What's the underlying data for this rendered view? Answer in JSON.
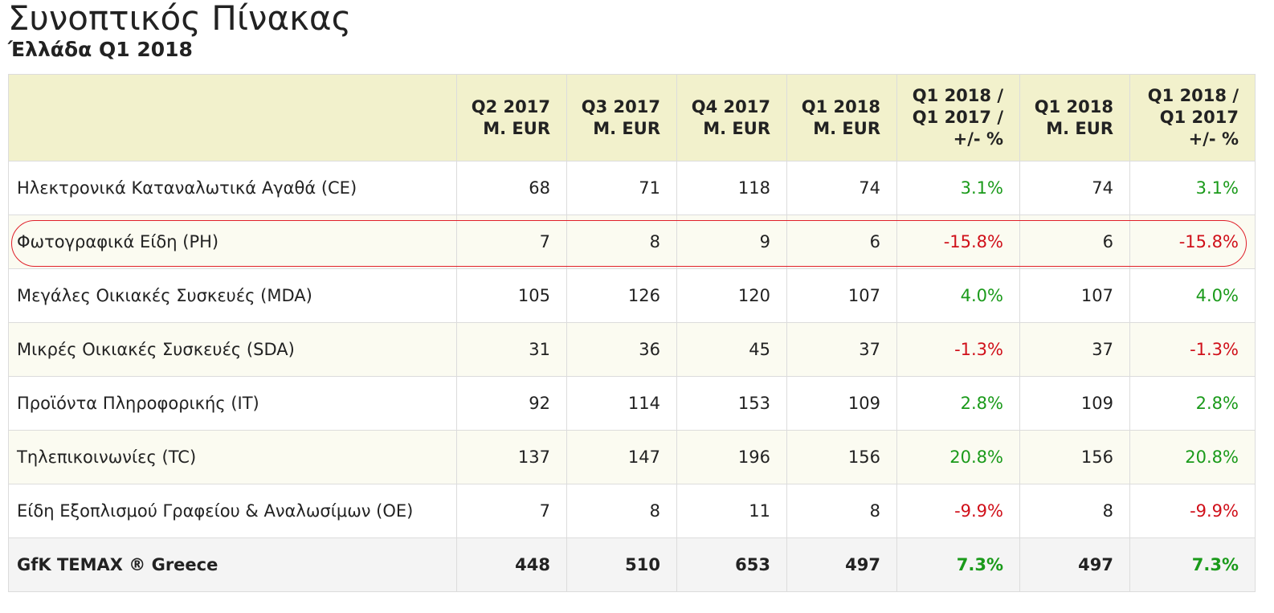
{
  "title": "Συνοπτικός Πίνακας",
  "subtitle": "Έλλάδα Q1 2018",
  "table": {
    "headers": [
      "",
      "Q2 2017\nM. EUR",
      "Q3 2017\nM. EUR",
      "Q4 2017\nM. EUR",
      "Q1 2018\nM. EUR",
      "Q1 2018 /\nQ1 2017 /\n+/- %",
      "Q1 2018\nM. EUR",
      "Q1 2018 /\nQ1 2017\n+/- %"
    ],
    "rows": [
      {
        "label": "Ηλεκτρονικά Καταναλωτικά Αγαθά (CE)",
        "q2_2017": "68",
        "q3_2017": "71",
        "q4_2017": "118",
        "q1_2018": "74",
        "change": "3.1%",
        "q1_2018_b": "74",
        "change_b": "3.1%"
      },
      {
        "label": "Φωτογραφικά Είδη (PH)",
        "q2_2017": "7",
        "q3_2017": "8",
        "q4_2017": "9",
        "q1_2018": "6",
        "change": "-15.8%",
        "q1_2018_b": "6",
        "change_b": "-15.8%"
      },
      {
        "label": "Μεγάλες Οικιακές Συσκευές (MDA)",
        "q2_2017": "105",
        "q3_2017": "126",
        "q4_2017": "120",
        "q1_2018": "107",
        "change": "4.0%",
        "q1_2018_b": "107",
        "change_b": "4.0%"
      },
      {
        "label": "Μικρές Οικιακές Συσκευές (SDA)",
        "q2_2017": "31",
        "q3_2017": "36",
        "q4_2017": "45",
        "q1_2018": "37",
        "change": "-1.3%",
        "q1_2018_b": "37",
        "change_b": "-1.3%"
      },
      {
        "label": "Προϊόντα Πληροφορικής (IT)",
        "q2_2017": "92",
        "q3_2017": "114",
        "q4_2017": "153",
        "q1_2018": "109",
        "change": "2.8%",
        "q1_2018_b": "109",
        "change_b": "2.8%"
      },
      {
        "label": "Τηλεπικοινωνίες (TC)",
        "q2_2017": "137",
        "q3_2017": "147",
        "q4_2017": "196",
        "q1_2018": "156",
        "change": "20.8%",
        "q1_2018_b": "156",
        "change_b": "20.8%"
      },
      {
        "label": "Είδη Εξοπλισμού Γραφείου & Αναλωσίμων (OE)",
        "q2_2017": "7",
        "q3_2017": "8",
        "q4_2017": "11",
        "q1_2018": "8",
        "change": "-9.9%",
        "q1_2018_b": "8",
        "change_b": "-9.9%"
      }
    ],
    "total": {
      "label": "GfK TEMAX ® Greece",
      "q2_2017": "448",
      "q3_2017": "510",
      "q4_2017": "653",
      "q1_2018": "497",
      "change": "7.3%",
      "q1_2018_b": "497",
      "change_b": "7.3%"
    }
  },
  "colors": {
    "header_bg": "#f2f1cc",
    "positive": "#1a9a1a",
    "negative": "#d0101a",
    "highlight": "#e0202a"
  }
}
